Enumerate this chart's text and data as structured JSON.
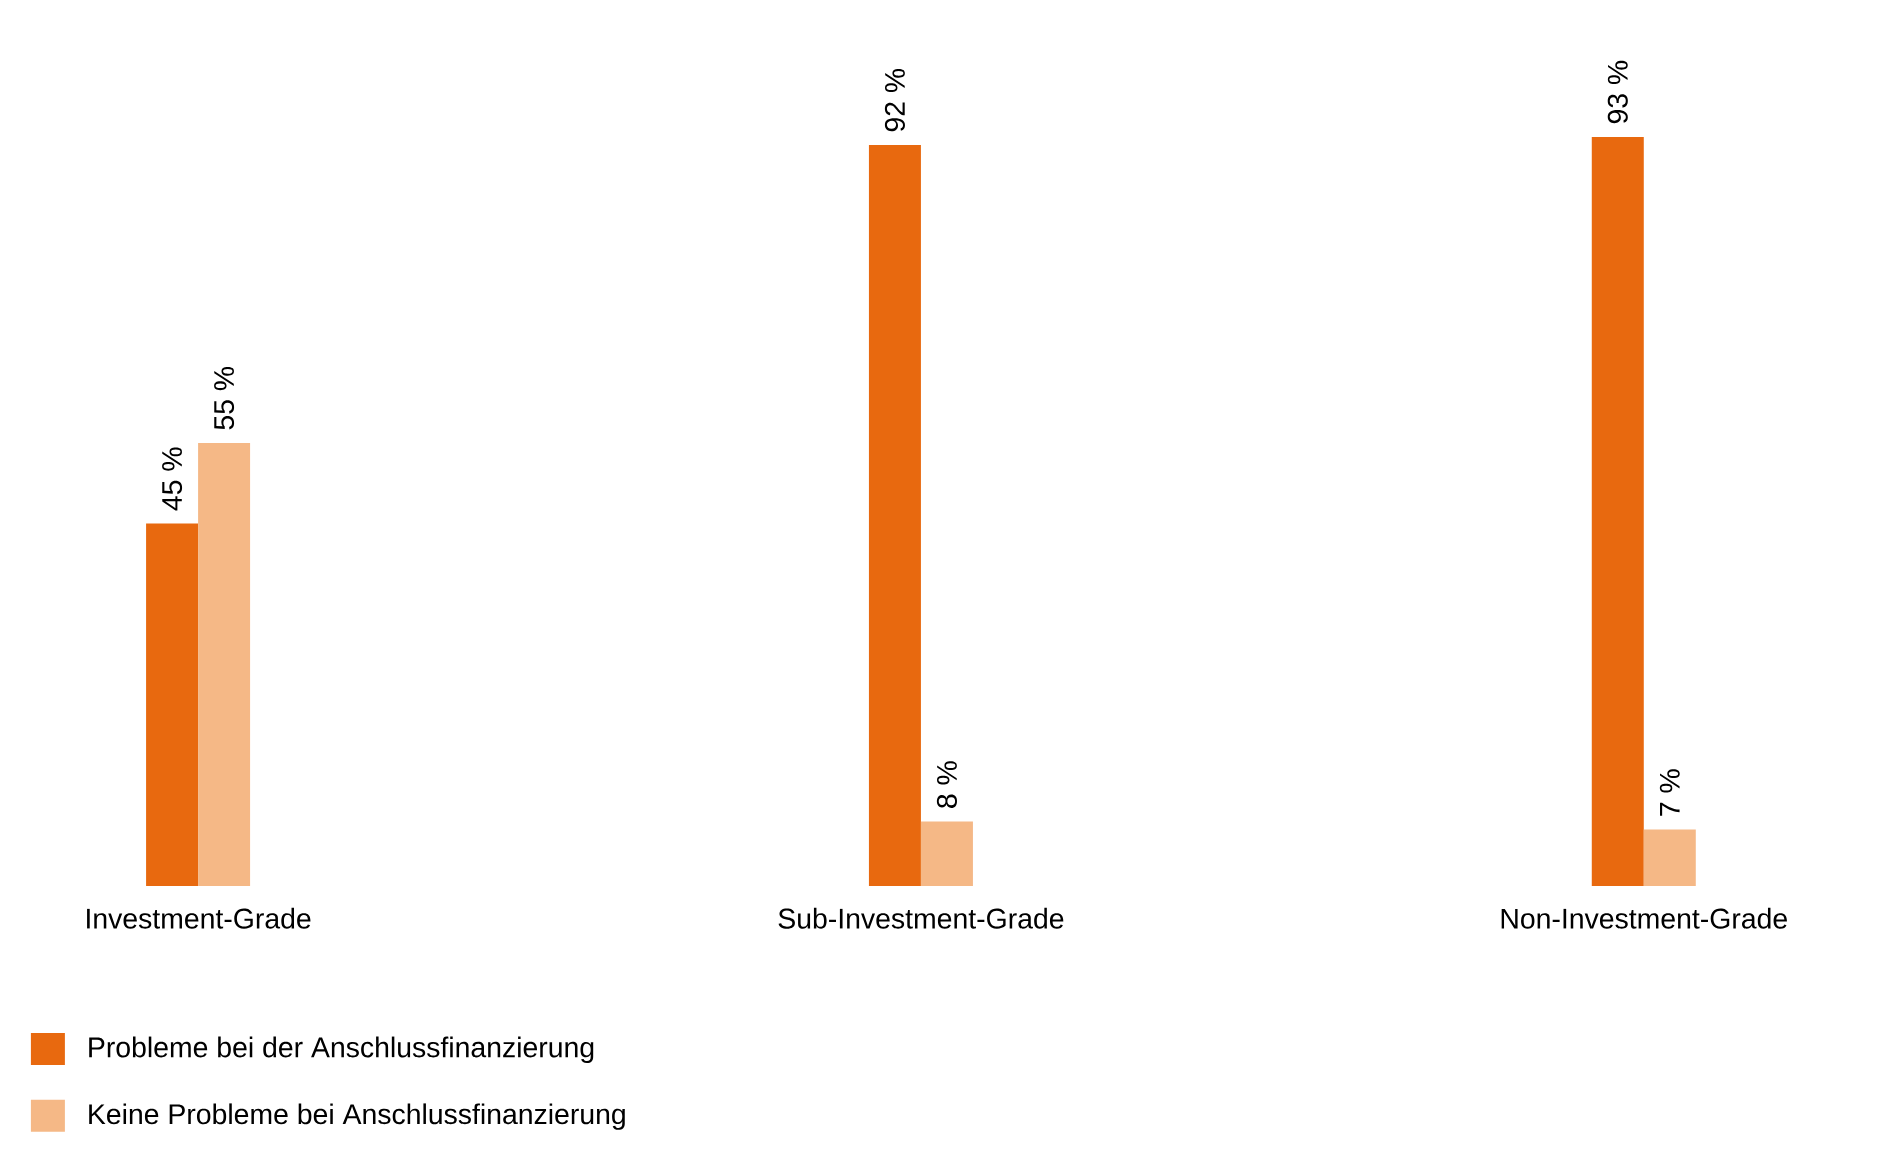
{
  "chart_data": {
    "type": "bar",
    "categories": [
      "Investment-Grade",
      "Sub-Investment-Grade",
      "Non-Investment-Grade"
    ],
    "series": [
      {
        "name": "Probleme bei der Anschlussfinanzierung",
        "color": "#e8690f",
        "values": [
          45,
          92,
          93
        ],
        "value_labels": [
          "45 %",
          "92 %",
          "93 %"
        ]
      },
      {
        "name": "Keine Probleme bei Anschlussfinanzierung",
        "color": "#f5b886",
        "values": [
          55,
          8,
          7
        ],
        "value_labels": [
          "55 %",
          "8 %",
          "7 %"
        ]
      }
    ],
    "relative": false,
    "legend": "bottom left"
  }
}
